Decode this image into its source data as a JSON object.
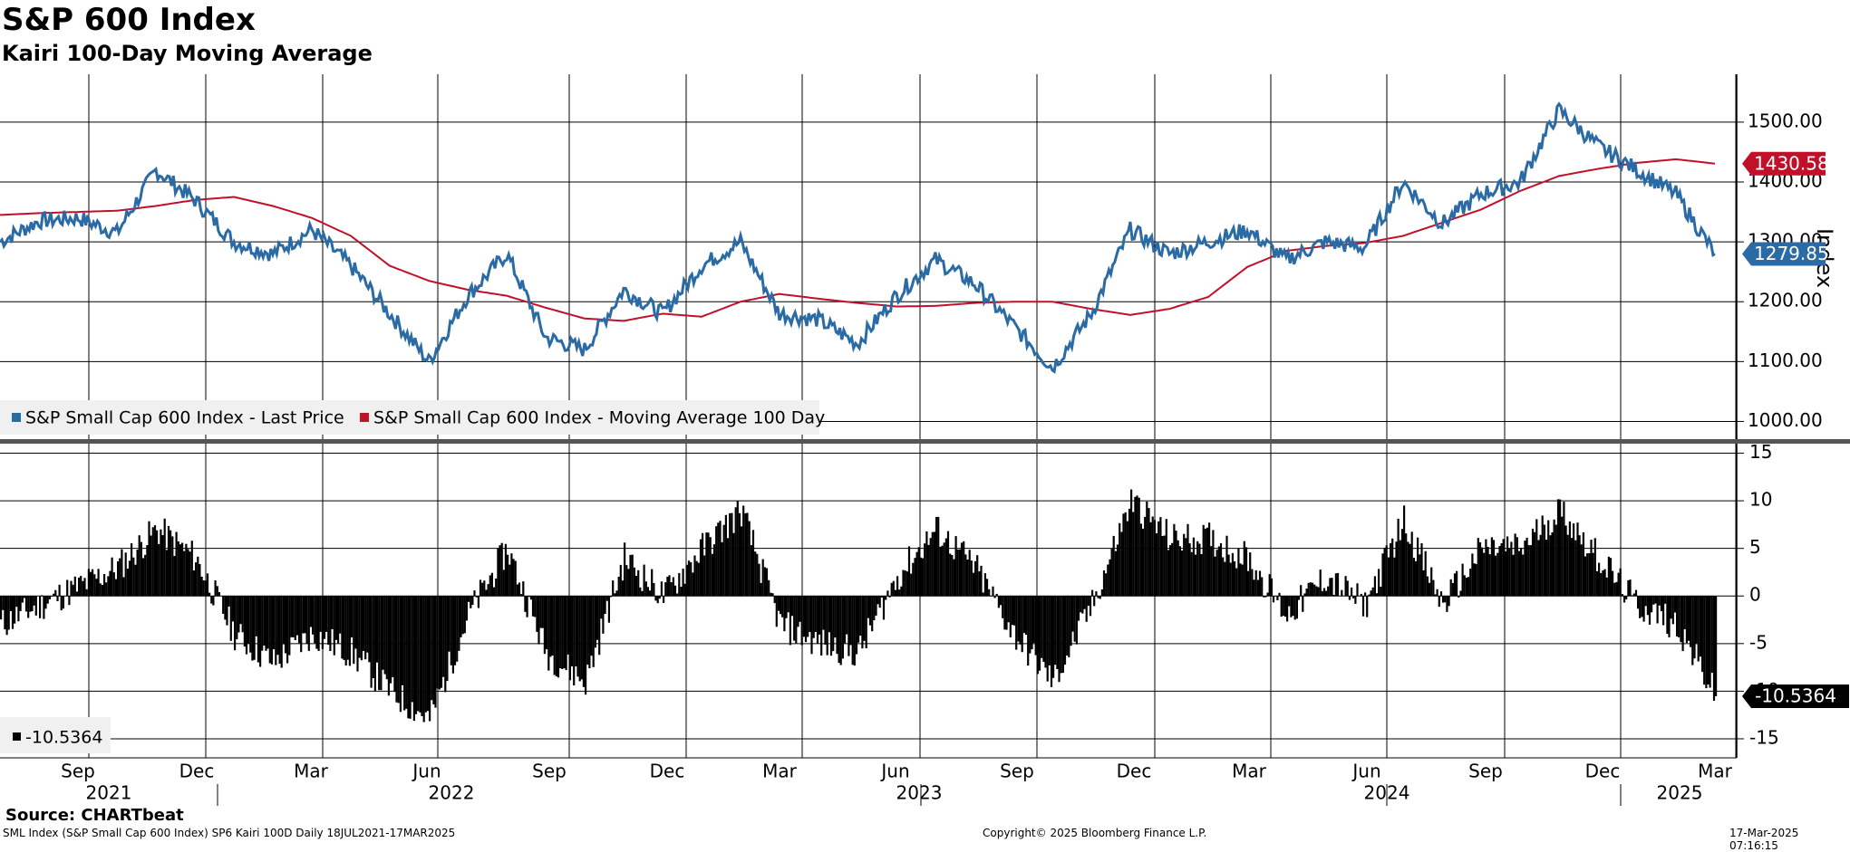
{
  "header": {
    "title": "S&P 600 Index",
    "subtitle": "Kairi 100-Day Moving Average"
  },
  "footer": {
    "source": "Source: CHARTbeat",
    "info": "SML Index (S&P Small Cap 600 Index) SP6 Kairi 100D  Daily 18JUL2021-17MAR2025",
    "copyright": "Copyright© 2025 Bloomberg Finance L.P.",
    "timestamp": "17-Mar-2025 07:16:15"
  },
  "colors": {
    "price": "#2a6aa5",
    "ma": "#c0102a",
    "kairi": "#000000",
    "grid": "#000000"
  },
  "chart_data": [
    {
      "type": "line",
      "title": "S&P 600 Index",
      "ylabel": "Index",
      "ylim": [
        975,
        1580
      ],
      "yticks": [
        "1000.00",
        "1100.00",
        "1200.00",
        "1300.00",
        "1400.00",
        "1500.00"
      ],
      "x": [
        "2021-07",
        "2021-08",
        "2021-09",
        "2021-10",
        "2021-11",
        "2021-12",
        "2022-01",
        "2022-02",
        "2022-03",
        "2022-04",
        "2022-05",
        "2022-06",
        "2022-07",
        "2022-08",
        "2022-09",
        "2022-10",
        "2022-11",
        "2022-12",
        "2023-01",
        "2023-02",
        "2023-03",
        "2023-04",
        "2023-05",
        "2023-06",
        "2023-07",
        "2023-08",
        "2023-09",
        "2023-10",
        "2023-11",
        "2023-12",
        "2024-01",
        "2024-02",
        "2024-03",
        "2024-04",
        "2024-05",
        "2024-06",
        "2024-07",
        "2024-08",
        "2024-09",
        "2024-10",
        "2024-11",
        "2024-12",
        "2025-01",
        "2025-02",
        "2025-03"
      ],
      "series": [
        {
          "name": "S&P Small Cap 600 Index - Last Price",
          "values": [
            1300,
            1335,
            1340,
            1315,
            1420,
            1370,
            1300,
            1280,
            1320,
            1260,
            1180,
            1100,
            1210,
            1280,
            1140,
            1120,
            1220,
            1180,
            1260,
            1300,
            1180,
            1170,
            1130,
            1210,
            1270,
            1230,
            1160,
            1090,
            1180,
            1320,
            1280,
            1300,
            1320,
            1270,
            1300,
            1290,
            1400,
            1330,
            1380,
            1400,
            1520,
            1460,
            1420,
            1380,
            1279.85
          ],
          "last_label": "1279.85"
        },
        {
          "name": "S&P Small Cap 600 Index - Moving Average 100 Day",
          "values": [
            1345,
            1348,
            1350,
            1352,
            1360,
            1370,
            1375,
            1360,
            1340,
            1310,
            1260,
            1235,
            1220,
            1210,
            1190,
            1172,
            1168,
            1180,
            1175,
            1200,
            1213,
            1205,
            1198,
            1192,
            1193,
            1198,
            1200,
            1200,
            1188,
            1178,
            1188,
            1208,
            1258,
            1285,
            1293,
            1298,
            1310,
            1332,
            1354,
            1385,
            1410,
            1422,
            1432,
            1438,
            1430.58
          ],
          "last_label": "1430.58"
        }
      ],
      "xlabels_month": [
        "Sep",
        "Dec",
        "Mar",
        "Jun",
        "Sep",
        "Dec",
        "Mar",
        "Jun",
        "Sep",
        "Dec",
        "Mar",
        "Jun",
        "Sep",
        "Dec",
        "Mar"
      ],
      "xlabels_year": [
        "2021",
        "2022",
        "2023",
        "2024",
        "2025"
      ],
      "legend": "bottom-left"
    },
    {
      "type": "bar",
      "title": "Kairi 100-Day Moving Average",
      "ylim": [
        -17,
        16
      ],
      "yticks": [
        "15",
        "10",
        "5",
        "0",
        "-5",
        "-10",
        "-15"
      ],
      "x": [
        "2021-07",
        "2021-08",
        "2021-09",
        "2021-10",
        "2021-11",
        "2021-12",
        "2022-01",
        "2022-02",
        "2022-03",
        "2022-04",
        "2022-05",
        "2022-06",
        "2022-07",
        "2022-08",
        "2022-09",
        "2022-10",
        "2022-11",
        "2022-12",
        "2023-01",
        "2023-02",
        "2023-03",
        "2023-04",
        "2023-05",
        "2023-06",
        "2023-07",
        "2023-08",
        "2023-09",
        "2023-10",
        "2023-11",
        "2023-12",
        "2024-01",
        "2024-02",
        "2024-03",
        "2024-04",
        "2024-05",
        "2024-06",
        "2024-07",
        "2024-08",
        "2024-09",
        "2024-10",
        "2024-11",
        "2024-12",
        "2025-01",
        "2025-02",
        "2025-03"
      ],
      "series": [
        {
          "name": "Kairi",
          "values": [
            -3,
            -1,
            1,
            3,
            7,
            4,
            -4,
            -7,
            -4,
            -6,
            -10,
            -13,
            -2,
            5,
            -6,
            -9,
            4,
            0,
            5,
            9,
            -3,
            -5,
            -6,
            2,
            7,
            3,
            -4,
            -9,
            -1,
            10,
            6,
            6,
            4,
            -2,
            2,
            -1,
            8,
            -1,
            5,
            5,
            9,
            4,
            -1,
            -3,
            -10.5364
          ],
          "last_label": "-10.5364",
          "legend_label": "-10.5364"
        }
      ]
    }
  ]
}
